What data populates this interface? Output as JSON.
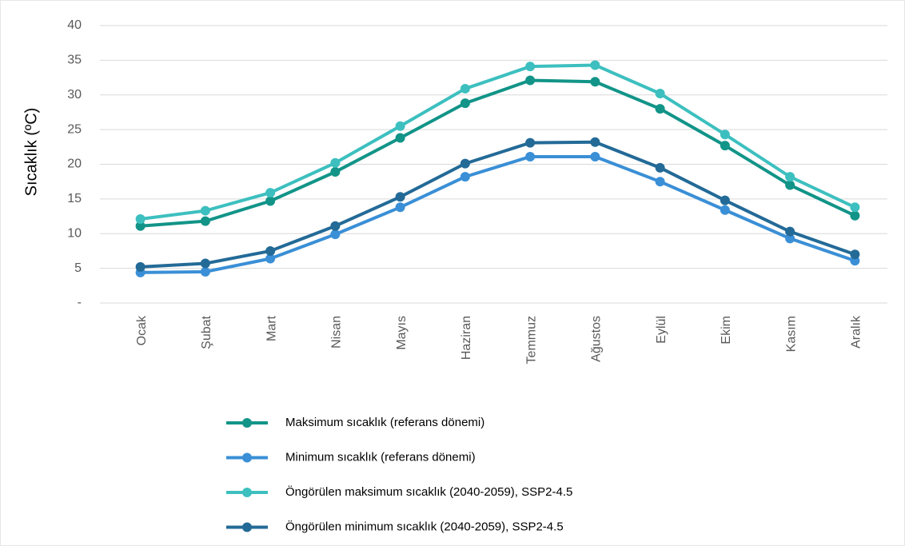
{
  "chart_data": {
    "type": "line",
    "y_label": "Sıcaklık (ºC)",
    "categories": [
      "Ocak",
      "Şubat",
      "Mart",
      "Nisan",
      "Mayıs",
      "Haziran",
      "Temmuz",
      "Ağustos",
      "Eylül",
      "Ekim",
      "Kasım",
      "Aralık"
    ],
    "series": [
      {
        "name": "Maksimum sıcaklık (referans dönemi)",
        "color": "#129488",
        "values": [
          11.1,
          11.8,
          14.7,
          18.9,
          23.8,
          28.8,
          32.1,
          31.9,
          28.0,
          22.7,
          17.0,
          12.6
        ]
      },
      {
        "name": "Minimum sıcaklık (referans dönemi)",
        "color": "#3a8fd6",
        "values": [
          4.4,
          4.5,
          6.4,
          9.9,
          13.8,
          18.2,
          21.1,
          21.1,
          17.5,
          13.4,
          9.3,
          6.1
        ]
      },
      {
        "name": "Öngörülen maksimum sıcaklık (2040-2059), SSP2-4.5",
        "color": "#3dbfbf",
        "values": [
          12.1,
          13.3,
          15.9,
          20.2,
          25.5,
          30.9,
          34.1,
          34.3,
          30.2,
          24.3,
          18.2,
          13.8
        ]
      },
      {
        "name": "Öngörülen minimum sıcaklık (2040-2059), SSP2-4.5",
        "color": "#236a97",
        "values": [
          5.2,
          5.7,
          7.5,
          11.1,
          15.3,
          20.1,
          23.1,
          23.2,
          19.5,
          14.8,
          10.3,
          7.0
        ]
      }
    ],
    "ylim": [
      0,
      40
    ],
    "yticks": [
      {
        "value": 0,
        "label": "-"
      },
      5,
      10,
      15,
      20,
      25,
      30,
      35,
      40
    ],
    "grid": true
  }
}
